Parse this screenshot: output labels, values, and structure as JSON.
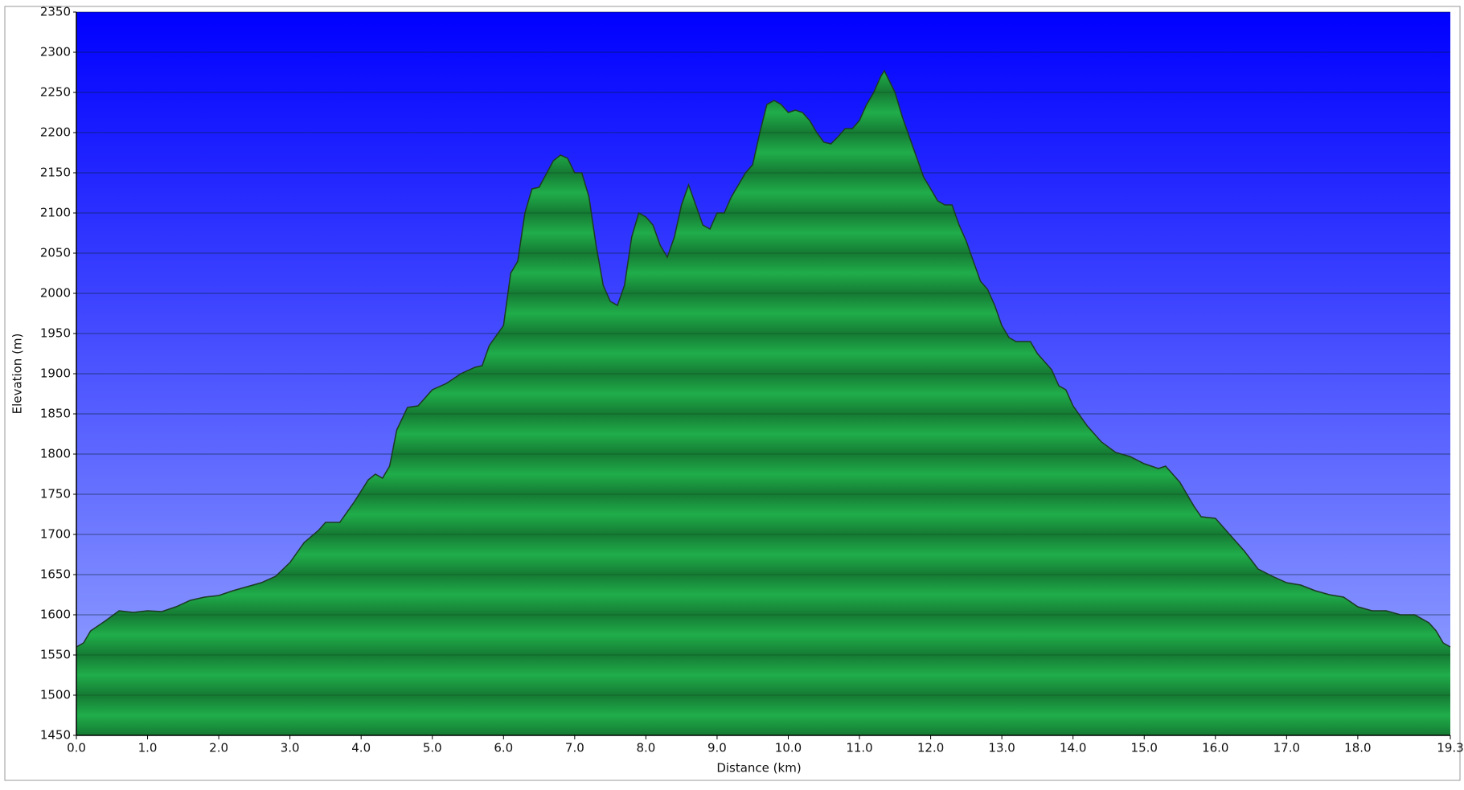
{
  "chart_data": {
    "type": "area",
    "xlabel": "Distance  (km)",
    "ylabel": "Elevation (m)",
    "color": "#20ad4a",
    "x": [
      0.0,
      0.1,
      0.2,
      0.4,
      0.6,
      0.8,
      1.0,
      1.2,
      1.4,
      1.6,
      1.8,
      2.0,
      2.2,
      2.4,
      2.6,
      2.8,
      3.0,
      3.2,
      3.4,
      3.5,
      3.7,
      3.9,
      4.1,
      4.2,
      4.3,
      4.4,
      4.5,
      4.65,
      4.8,
      5.0,
      5.2,
      5.4,
      5.6,
      5.7,
      5.8,
      6.0,
      6.1,
      6.2,
      6.3,
      6.4,
      6.5,
      6.7,
      6.8,
      6.9,
      7.0,
      7.1,
      7.2,
      7.3,
      7.4,
      7.5,
      7.6,
      7.7,
      7.8,
      7.9,
      8.0,
      8.1,
      8.2,
      8.3,
      8.4,
      8.5,
      8.6,
      8.7,
      8.8,
      8.9,
      9.0,
      9.1,
      9.2,
      9.3,
      9.4,
      9.5,
      9.6,
      9.7,
      9.8,
      9.9,
      10.0,
      10.1,
      10.2,
      10.3,
      10.4,
      10.5,
      10.6,
      10.7,
      10.8,
      10.9,
      11.0,
      11.1,
      11.2,
      11.3,
      11.35,
      11.5,
      11.6,
      11.7,
      11.8,
      11.9,
      12.0,
      12.1,
      12.2,
      12.3,
      12.4,
      12.5,
      12.6,
      12.7,
      12.8,
      12.9,
      13.0,
      13.1,
      13.2,
      13.4,
      13.5,
      13.7,
      13.8,
      13.9,
      14.0,
      14.2,
      14.4,
      14.6,
      14.8,
      15.0,
      15.2,
      15.3,
      15.5,
      15.7,
      15.8,
      16.0,
      16.2,
      16.4,
      16.6,
      16.8,
      17.0,
      17.2,
      17.4,
      17.6,
      17.8,
      18.0,
      18.2,
      18.4,
      18.6,
      18.8,
      19.0,
      19.1,
      19.2,
      19.3
    ],
    "values": [
      1560,
      1565,
      1580,
      1592,
      1605,
      1603,
      1605,
      1604,
      1610,
      1618,
      1622,
      1624,
      1630,
      1635,
      1640,
      1648,
      1665,
      1690,
      1705,
      1715,
      1715,
      1740,
      1768,
      1775,
      1770,
      1785,
      1830,
      1858,
      1860,
      1880,
      1888,
      1900,
      1908,
      1910,
      1935,
      1960,
      2025,
      2040,
      2100,
      2130,
      2132,
      2165,
      2172,
      2168,
      2150,
      2150,
      2120,
      2060,
      2010,
      1990,
      1985,
      2010,
      2070,
      2100,
      2095,
      2085,
      2060,
      2045,
      2070,
      2110,
      2135,
      2110,
      2085,
      2080,
      2100,
      2100,
      2120,
      2135,
      2150,
      2160,
      2200,
      2235,
      2240,
      2235,
      2225,
      2228,
      2225,
      2215,
      2200,
      2188,
      2186,
      2195,
      2205,
      2205,
      2215,
      2235,
      2250,
      2270,
      2277,
      2250,
      2220,
      2195,
      2170,
      2145,
      2130,
      2115,
      2110,
      2110,
      2085,
      2065,
      2040,
      2015,
      2005,
      1985,
      1960,
      1945,
      1940,
      1940,
      1925,
      1905,
      1885,
      1880,
      1860,
      1835,
      1815,
      1802,
      1797,
      1788,
      1782,
      1785,
      1765,
      1735,
      1722,
      1720,
      1700,
      1680,
      1657,
      1648,
      1640,
      1637,
      1630,
      1625,
      1622,
      1610,
      1605,
      1605,
      1600,
      1600,
      1590,
      1580,
      1565,
      1560
    ],
    "xlim": [
      0,
      19.3
    ],
    "xticks": [
      {
        "value": 0,
        "label": "0.0"
      },
      {
        "value": 1,
        "label": "1.0"
      },
      {
        "value": 2,
        "label": "2.0"
      },
      {
        "value": 3,
        "label": "3.0"
      },
      {
        "value": 4,
        "label": "4.0"
      },
      {
        "value": 5,
        "label": "5.0"
      },
      {
        "value": 6,
        "label": "6.0"
      },
      {
        "value": 7,
        "label": "7.0"
      },
      {
        "value": 8,
        "label": "8.0"
      },
      {
        "value": 9,
        "label": "9.0"
      },
      {
        "value": 10,
        "label": "10.0"
      },
      {
        "value": 11,
        "label": "11.0"
      },
      {
        "value": 12,
        "label": "12.0"
      },
      {
        "value": 13,
        "label": "13.0"
      },
      {
        "value": 14,
        "label": "14.0"
      },
      {
        "value": 15,
        "label": "15.0"
      },
      {
        "value": 16,
        "label": "16.0"
      },
      {
        "value": 17,
        "label": "17.0"
      },
      {
        "value": 18,
        "label": "18.0"
      },
      19.3
    ],
    "ylim": [
      1450,
      2350
    ],
    "yticks": [
      1450,
      1500,
      1550,
      1600,
      1650,
      1700,
      1750,
      1800,
      1850,
      1900,
      1950,
      2000,
      2050,
      2100,
      2150,
      2200,
      2250,
      2300,
      2350
    ],
    "grid": true
  }
}
